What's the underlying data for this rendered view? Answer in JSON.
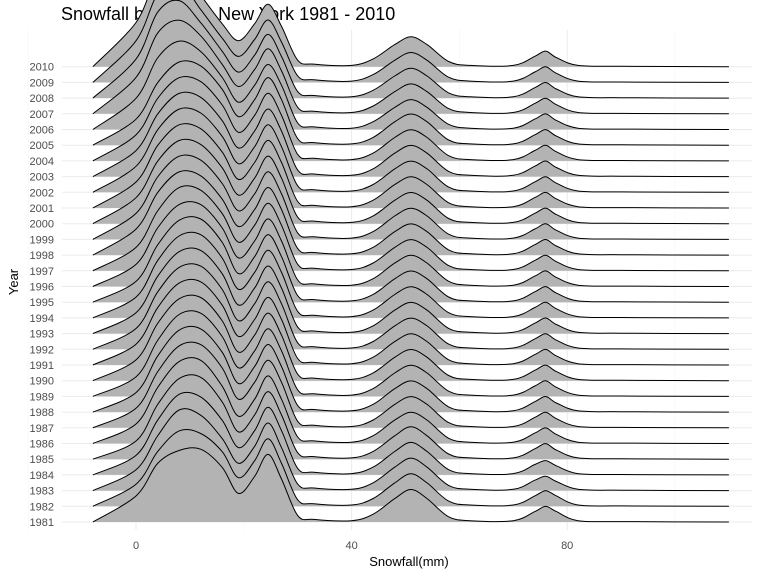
{
  "chart_data": {
    "type": "ridgeline",
    "title": "Snowfall by Year in New York 1981 - 2010",
    "xlabel": "Snowfall(mm)",
    "ylabel": "Year",
    "xlim": [
      -10,
      110
    ],
    "x_ticks": [
      0,
      40,
      80
    ],
    "grid": true,
    "fill_color": "#b3b3b3",
    "line_color": "#000000",
    "years": [
      "1981",
      "1982",
      "1983",
      "1984",
      "1985",
      "1986",
      "1987",
      "1988",
      "1989",
      "1990",
      "1991",
      "1992",
      "1993",
      "1994",
      "1995",
      "1996",
      "1997",
      "1998",
      "1999",
      "2000",
      "2001",
      "2002",
      "2003",
      "2004",
      "2005",
      "2006",
      "2007",
      "2008",
      "2009",
      "2010"
    ],
    "density_x": [
      -8,
      0,
      4,
      8,
      12,
      16,
      19,
      22,
      24.5,
      27,
      30,
      33,
      40,
      44,
      48,
      51,
      54,
      58,
      62,
      70,
      74,
      76,
      78,
      82,
      90,
      110
    ],
    "densities": [
      [
        0,
        0.2,
        0.45,
        0.55,
        0.56,
        0.42,
        0.22,
        0.35,
        0.52,
        0.33,
        0.05,
        0.02,
        0.01,
        0.06,
        0.18,
        0.25,
        0.18,
        0.04,
        0.01,
        0.01,
        0.08,
        0.12,
        0.08,
        0.01,
        0.003,
        0
      ],
      [
        0,
        0.17,
        0.42,
        0.58,
        0.56,
        0.42,
        0.22,
        0.35,
        0.52,
        0.33,
        0.05,
        0.02,
        0.01,
        0.06,
        0.18,
        0.25,
        0.18,
        0.04,
        0.01,
        0.01,
        0.08,
        0.12,
        0.08,
        0.01,
        0.003,
        0
      ],
      [
        0,
        0.16,
        0.42,
        0.62,
        0.58,
        0.4,
        0.21,
        0.34,
        0.52,
        0.33,
        0.05,
        0.02,
        0.01,
        0.06,
        0.18,
        0.25,
        0.18,
        0.04,
        0.01,
        0.01,
        0.08,
        0.11,
        0.07,
        0.01,
        0.003,
        0
      ],
      [
        0,
        0.15,
        0.42,
        0.62,
        0.6,
        0.42,
        0.21,
        0.34,
        0.52,
        0.34,
        0.05,
        0.02,
        0.01,
        0.06,
        0.18,
        0.25,
        0.18,
        0.04,
        0.01,
        0.01,
        0.08,
        0.11,
        0.07,
        0.01,
        0.003,
        0
      ],
      [
        0,
        0.14,
        0.42,
        0.62,
        0.63,
        0.44,
        0.21,
        0.34,
        0.52,
        0.34,
        0.05,
        0.02,
        0.01,
        0.06,
        0.18,
        0.25,
        0.18,
        0.04,
        0.01,
        0.01,
        0.08,
        0.12,
        0.07,
        0.01,
        0.003,
        0
      ],
      [
        0,
        0.15,
        0.43,
        0.63,
        0.64,
        0.44,
        0.21,
        0.34,
        0.52,
        0.34,
        0.05,
        0.02,
        0.01,
        0.06,
        0.18,
        0.24,
        0.18,
        0.04,
        0.01,
        0.01,
        0.08,
        0.12,
        0.07,
        0.01,
        0.003,
        0
      ],
      [
        0,
        0.15,
        0.43,
        0.63,
        0.64,
        0.46,
        0.22,
        0.35,
        0.52,
        0.35,
        0.05,
        0.02,
        0.01,
        0.06,
        0.18,
        0.24,
        0.18,
        0.04,
        0.01,
        0.01,
        0.08,
        0.12,
        0.07,
        0.01,
        0.003,
        0
      ],
      [
        0,
        0.15,
        0.43,
        0.63,
        0.64,
        0.46,
        0.22,
        0.35,
        0.52,
        0.35,
        0.05,
        0.02,
        0.01,
        0.06,
        0.18,
        0.24,
        0.18,
        0.04,
        0.01,
        0.01,
        0.08,
        0.12,
        0.07,
        0.01,
        0.003,
        0
      ],
      [
        0,
        0.15,
        0.43,
        0.63,
        0.64,
        0.46,
        0.22,
        0.35,
        0.52,
        0.35,
        0.05,
        0.02,
        0.01,
        0.06,
        0.18,
        0.24,
        0.18,
        0.04,
        0.01,
        0.01,
        0.08,
        0.12,
        0.07,
        0.01,
        0.003,
        0
      ],
      [
        0,
        0.16,
        0.44,
        0.63,
        0.64,
        0.46,
        0.22,
        0.35,
        0.52,
        0.35,
        0.05,
        0.02,
        0.01,
        0.06,
        0.18,
        0.24,
        0.18,
        0.04,
        0.01,
        0.01,
        0.08,
        0.12,
        0.07,
        0.01,
        0.003,
        0
      ],
      [
        0,
        0.16,
        0.44,
        0.63,
        0.64,
        0.46,
        0.22,
        0.35,
        0.52,
        0.35,
        0.05,
        0.02,
        0.01,
        0.06,
        0.18,
        0.24,
        0.18,
        0.04,
        0.01,
        0.01,
        0.08,
        0.12,
        0.07,
        0.01,
        0.003,
        0
      ],
      [
        0,
        0.16,
        0.44,
        0.63,
        0.64,
        0.46,
        0.22,
        0.35,
        0.52,
        0.35,
        0.05,
        0.02,
        0.01,
        0.06,
        0.18,
        0.24,
        0.18,
        0.04,
        0.01,
        0.01,
        0.08,
        0.12,
        0.07,
        0.01,
        0.003,
        0
      ],
      [
        0,
        0.16,
        0.44,
        0.63,
        0.64,
        0.46,
        0.22,
        0.35,
        0.52,
        0.35,
        0.05,
        0.02,
        0.01,
        0.06,
        0.18,
        0.24,
        0.18,
        0.04,
        0.01,
        0.01,
        0.08,
        0.12,
        0.07,
        0.01,
        0.003,
        0
      ],
      [
        0,
        0.16,
        0.44,
        0.63,
        0.64,
        0.46,
        0.22,
        0.35,
        0.52,
        0.35,
        0.05,
        0.02,
        0.01,
        0.06,
        0.18,
        0.24,
        0.18,
        0.04,
        0.01,
        0.01,
        0.08,
        0.12,
        0.07,
        0.01,
        0.003,
        0
      ],
      [
        0,
        0.16,
        0.44,
        0.63,
        0.64,
        0.46,
        0.22,
        0.35,
        0.52,
        0.35,
        0.05,
        0.02,
        0.01,
        0.06,
        0.18,
        0.24,
        0.18,
        0.04,
        0.01,
        0.01,
        0.08,
        0.12,
        0.07,
        0.01,
        0.003,
        0
      ],
      [
        0,
        0.17,
        0.45,
        0.63,
        0.63,
        0.45,
        0.22,
        0.35,
        0.52,
        0.35,
        0.05,
        0.02,
        0.01,
        0.06,
        0.18,
        0.24,
        0.18,
        0.04,
        0.01,
        0.01,
        0.08,
        0.12,
        0.07,
        0.01,
        0.003,
        0
      ],
      [
        0,
        0.18,
        0.46,
        0.64,
        0.62,
        0.44,
        0.22,
        0.35,
        0.52,
        0.35,
        0.05,
        0.02,
        0.01,
        0.06,
        0.18,
        0.24,
        0.18,
        0.04,
        0.01,
        0.01,
        0.08,
        0.12,
        0.07,
        0.01,
        0.003,
        0
      ],
      [
        0,
        0.2,
        0.48,
        0.64,
        0.61,
        0.43,
        0.22,
        0.35,
        0.52,
        0.35,
        0.05,
        0.02,
        0.01,
        0.06,
        0.18,
        0.24,
        0.18,
        0.04,
        0.01,
        0.01,
        0.08,
        0.12,
        0.07,
        0.01,
        0.003,
        0
      ],
      [
        0,
        0.2,
        0.48,
        0.64,
        0.61,
        0.43,
        0.22,
        0.35,
        0.52,
        0.35,
        0.05,
        0.02,
        0.01,
        0.06,
        0.18,
        0.24,
        0.18,
        0.04,
        0.01,
        0.01,
        0.08,
        0.12,
        0.07,
        0.01,
        0.003,
        0
      ],
      [
        0,
        0.2,
        0.48,
        0.64,
        0.61,
        0.43,
        0.22,
        0.35,
        0.52,
        0.35,
        0.05,
        0.02,
        0.01,
        0.06,
        0.18,
        0.24,
        0.18,
        0.04,
        0.01,
        0.01,
        0.08,
        0.12,
        0.07,
        0.01,
        0.003,
        0
      ],
      [
        0,
        0.2,
        0.48,
        0.64,
        0.61,
        0.43,
        0.22,
        0.35,
        0.52,
        0.35,
        0.05,
        0.02,
        0.01,
        0.06,
        0.18,
        0.24,
        0.18,
        0.04,
        0.01,
        0.01,
        0.08,
        0.12,
        0.07,
        0.01,
        0.003,
        0
      ],
      [
        0,
        0.2,
        0.48,
        0.64,
        0.61,
        0.43,
        0.22,
        0.35,
        0.52,
        0.35,
        0.05,
        0.02,
        0.01,
        0.06,
        0.18,
        0.24,
        0.18,
        0.04,
        0.01,
        0.01,
        0.08,
        0.12,
        0.07,
        0.01,
        0.003,
        0
      ],
      [
        0,
        0.2,
        0.48,
        0.64,
        0.61,
        0.43,
        0.22,
        0.35,
        0.52,
        0.35,
        0.05,
        0.02,
        0.01,
        0.06,
        0.18,
        0.24,
        0.18,
        0.04,
        0.01,
        0.01,
        0.08,
        0.12,
        0.07,
        0.01,
        0.003,
        0
      ],
      [
        0,
        0.2,
        0.48,
        0.64,
        0.61,
        0.43,
        0.22,
        0.35,
        0.52,
        0.35,
        0.05,
        0.02,
        0.01,
        0.06,
        0.18,
        0.24,
        0.18,
        0.04,
        0.01,
        0.01,
        0.08,
        0.12,
        0.07,
        0.01,
        0.003,
        0
      ],
      [
        0,
        0.2,
        0.48,
        0.64,
        0.61,
        0.43,
        0.22,
        0.35,
        0.52,
        0.35,
        0.05,
        0.02,
        0.01,
        0.06,
        0.18,
        0.24,
        0.18,
        0.04,
        0.01,
        0.01,
        0.08,
        0.12,
        0.07,
        0.01,
        0.003,
        0
      ],
      [
        0,
        0.24,
        0.55,
        0.68,
        0.6,
        0.4,
        0.21,
        0.34,
        0.5,
        0.34,
        0.05,
        0.02,
        0.01,
        0.06,
        0.17,
        0.23,
        0.17,
        0.04,
        0.01,
        0.01,
        0.08,
        0.12,
        0.07,
        0.01,
        0.003,
        0
      ],
      [
        0,
        0.28,
        0.62,
        0.72,
        0.6,
        0.38,
        0.21,
        0.34,
        0.5,
        0.33,
        0.05,
        0.02,
        0.01,
        0.06,
        0.17,
        0.23,
        0.17,
        0.04,
        0.01,
        0.01,
        0.08,
        0.12,
        0.07,
        0.01,
        0.003,
        0
      ],
      [
        0,
        0.3,
        0.66,
        0.75,
        0.58,
        0.36,
        0.2,
        0.33,
        0.49,
        0.32,
        0.05,
        0.02,
        0.01,
        0.06,
        0.17,
        0.23,
        0.17,
        0.04,
        0.01,
        0.01,
        0.08,
        0.12,
        0.07,
        0.01,
        0.003,
        0
      ],
      [
        0,
        0.32,
        0.68,
        0.77,
        0.56,
        0.34,
        0.2,
        0.33,
        0.48,
        0.31,
        0.05,
        0.02,
        0.01,
        0.06,
        0.17,
        0.23,
        0.17,
        0.04,
        0.01,
        0.01,
        0.08,
        0.12,
        0.07,
        0.01,
        0.003,
        0
      ],
      [
        0,
        0.34,
        0.7,
        0.78,
        0.55,
        0.33,
        0.2,
        0.33,
        0.48,
        0.31,
        0.05,
        0.02,
        0.01,
        0.06,
        0.17,
        0.23,
        0.17,
        0.04,
        0.01,
        0.01,
        0.08,
        0.12,
        0.07,
        0.01,
        0.003,
        0
      ]
    ]
  }
}
